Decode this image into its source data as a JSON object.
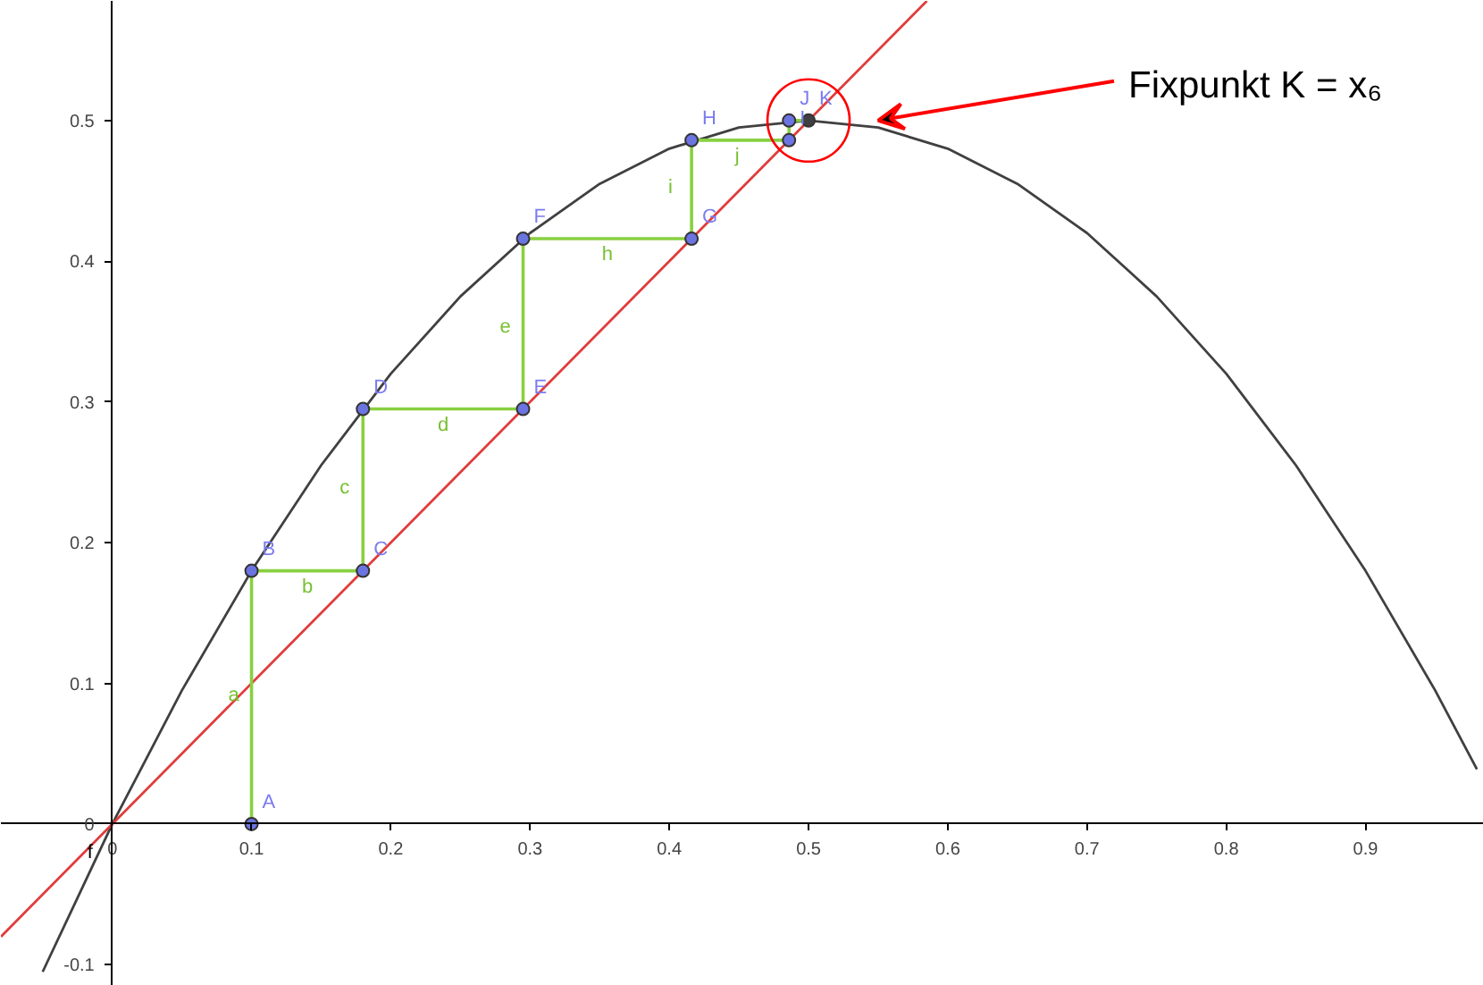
{
  "chart_data": {
    "type": "line",
    "xlim": [
      -0.08,
      0.985
    ],
    "ylim": [
      -0.115,
      0.585
    ],
    "xticks": [
      0,
      0.1,
      0.2,
      0.3,
      0.4,
      0.5,
      0.6,
      0.7,
      0.8,
      0.9
    ],
    "yticks": [
      -0.1,
      0,
      0.1,
      0.2,
      0.3,
      0.4,
      0.5
    ],
    "grid": false,
    "series": [
      {
        "color": "#404040",
        "x": [
          -0.05,
          0,
          0.05,
          0.1,
          0.15,
          0.2,
          0.25,
          0.3,
          0.35,
          0.4,
          0.45,
          0.5,
          0.55,
          0.6,
          0.65,
          0.7,
          0.75,
          0.8,
          0.85,
          0.9,
          0.95,
          0.98
        ],
        "values": [
          -0.105,
          0,
          0.095,
          0.18,
          0.255,
          0.32,
          0.375,
          0.42,
          0.455,
          0.48,
          0.495,
          0.5,
          0.495,
          0.48,
          0.455,
          0.42,
          0.375,
          0.32,
          0.255,
          0.18,
          0.095,
          0.039
        ]
      },
      {
        "color": "#e03c3c",
        "x": [
          -0.08,
          0.585
        ],
        "values": [
          -0.08,
          0.585
        ]
      },
      {
        "color": "#88d040",
        "x": [
          0.1,
          0.1,
          0.18,
          0.18,
          0.295,
          0.295,
          0.416,
          0.416,
          0.486,
          0.486,
          0.5
        ],
        "values": [
          0,
          0.18,
          0.18,
          0.295,
          0.295,
          0.416,
          0.416,
          0.486,
          0.486,
          0.5,
          0.5
        ]
      },
      {
        "type": "scatter",
        "marker": "circle",
        "color": "#6b74e0",
        "colors": [
          "#6b74e0",
          "#6b74e0",
          "#6b74e0",
          "#6b74e0",
          "#6b74e0",
          "#6b74e0",
          "#6b74e0",
          "#6b74e0",
          "#6b74e0",
          "#6b74e0",
          "#404040"
        ],
        "x": [
          0.1,
          0.1,
          0.18,
          0.18,
          0.295,
          0.295,
          0.416,
          0.416,
          0.486,
          0.486,
          0.5
        ],
        "values": [
          0,
          0.18,
          0.18,
          0.295,
          0.295,
          0.416,
          0.416,
          0.486,
          0.486,
          0.5,
          0.5
        ]
      }
    ],
    "annotations": [
      {
        "text": "Fixpunkt K = x₆",
        "x": 0.55,
        "y": 0.5
      },
      {
        "text": "A",
        "x": 0.1,
        "y": 0
      },
      {
        "text": "B",
        "x": 0.1,
        "y": 0.18
      },
      {
        "text": "C",
        "x": 0.18,
        "y": 0.18
      },
      {
        "text": "D",
        "x": 0.18,
        "y": 0.295
      },
      {
        "text": "E",
        "x": 0.295,
        "y": 0.295
      },
      {
        "text": "F",
        "x": 0.295,
        "y": 0.416
      },
      {
        "text": "G",
        "x": 0.416,
        "y": 0.416
      },
      {
        "text": "H",
        "x": 0.416,
        "y": 0.486
      },
      {
        "text": "I",
        "x": 0.486,
        "y": 0.486
      },
      {
        "text": "J",
        "x": 0.486,
        "y": 0.5
      },
      {
        "text": "K",
        "x": 0.5,
        "y": 0.5
      },
      {
        "text": "a",
        "x": 0.1,
        "y": 0.09
      },
      {
        "text": "b",
        "x": 0.14,
        "y": 0.18
      },
      {
        "text": "c",
        "x": 0.18,
        "y": 0.2375
      },
      {
        "text": "d",
        "x": 0.2375,
        "y": 0.295
      },
      {
        "text": "e",
        "x": 0.295,
        "y": 0.3555
      },
      {
        "text": "h",
        "x": 0.3555,
        "y": 0.416
      },
      {
        "text": "i",
        "x": 0.416,
        "y": 0.451
      },
      {
        "text": "j",
        "x": 0.451,
        "y": 0.486
      },
      {
        "text": "f",
        "x": 0,
        "y": 0
      }
    ]
  }
}
